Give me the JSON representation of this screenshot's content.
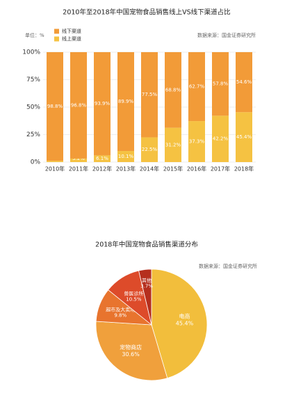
{
  "chart_data": [
    {
      "type": "bar",
      "stacked": true,
      "title": "2010年至2018年中国宠物食品销售线上VS线下渠道占比",
      "unit_label": "单位：%",
      "source": "数据来源：国金证券研究所",
      "legend": "top-left",
      "grid": true,
      "categories": [
        "2010年",
        "2011年",
        "2012年",
        "2013年",
        "2014年",
        "2015年",
        "2016年",
        "2017年",
        "2018年"
      ],
      "series": [
        {
          "name": "线下渠道",
          "color": "#F29B38",
          "values": [
            98.8,
            96.8,
            93.9,
            89.9,
            77.5,
            68.8,
            62.7,
            57.8,
            54.6
          ],
          "value_labels": [
            "98.8%",
            "96.8%",
            "93.9%",
            "89.9%",
            "77.5%",
            "68.8%",
            "62.7%",
            "57.8%",
            "54.6%"
          ]
        },
        {
          "name": "线上渠道",
          "color": "#F5C242",
          "values": [
            1.2,
            3.2,
            6.1,
            10.1,
            22.5,
            31.2,
            37.3,
            42.2,
            45.4
          ],
          "value_labels": [
            "1.2%",
            "3.2%",
            "6.1%",
            "10.1%",
            "22.5%",
            "31.2%",
            "37.3%",
            "42.2%",
            "45.4%"
          ]
        }
      ],
      "ylim": [
        0,
        100
      ],
      "yticks": [
        {
          "value": 0,
          "label": "0%"
        },
        {
          "value": 25,
          "label": "25%"
        },
        {
          "value": 50,
          "label": "50%"
        },
        {
          "value": 75,
          "label": "75%"
        },
        {
          "value": 100,
          "label": "100%"
        }
      ]
    },
    {
      "type": "pie",
      "title": "2018年中国宠物食品销售渠道分布",
      "source": "数据来源：国金证券研究所",
      "categories": [
        "电商",
        "宠物商店",
        "超市及大卖场",
        "兽医诊所",
        "其他"
      ],
      "values": [
        45.4,
        30.6,
        9.8,
        10.5,
        3.7
      ],
      "value_labels": [
        "45.4%",
        "30.6%",
        "9.8%",
        "10.5%",
        "3.7%"
      ],
      "colors": [
        "#F2BE3C",
        "#F0A03C",
        "#E8742E",
        "#DD4B2A",
        "#B52F1E"
      ]
    }
  ]
}
